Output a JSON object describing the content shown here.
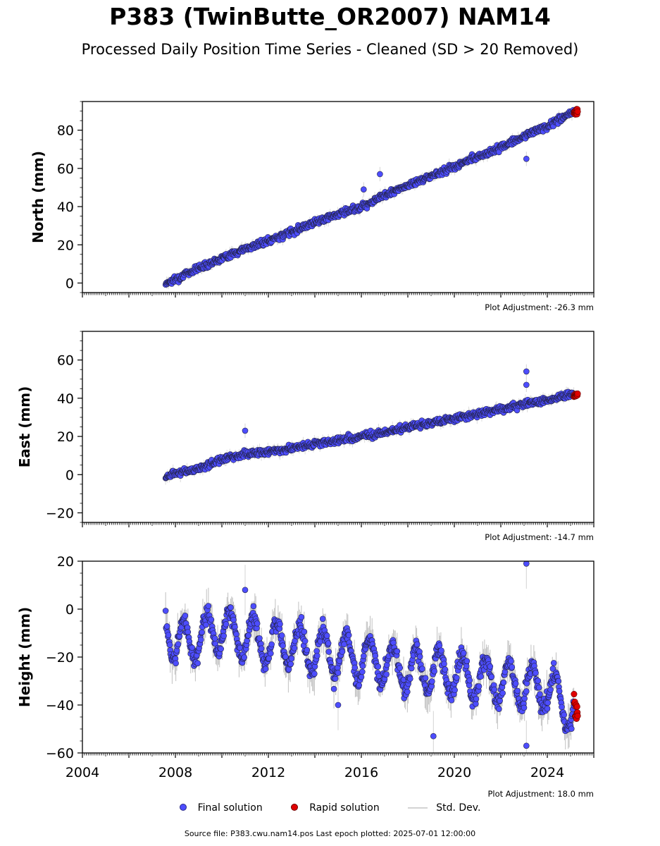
{
  "title": "P383 (TwinButte_OR2007) NAM14",
  "subtitle": "Processed Daily Position Time Series - Cleaned (SD > 20 Removed)",
  "legend": {
    "final": "Final solution",
    "rapid": "Rapid solution",
    "std": "Std. Dev."
  },
  "source": "Source file: P383.cwu.nam14.pos  Last epoch plotted: 2025-07-01 12:00:00",
  "colors": {
    "final": "#4d4dff",
    "rapid": "#e00000",
    "std": "#d3d3d3"
  },
  "chart_data": [
    {
      "type": "scatter",
      "ylabel": "North (mm)",
      "xlim": [
        2004,
        2026
      ],
      "ylim": [
        -5,
        95
      ],
      "yticks": [
        0,
        20,
        40,
        60,
        80
      ],
      "adjustment": "Plot Adjustment: -26.3 mm",
      "series": [
        {
          "name": "Final solution",
          "x": [
            2007.6,
            2008.0,
            2009.0,
            2010.0,
            2011.0,
            2012.0,
            2013.0,
            2014.0,
            2015.0,
            2016.0,
            2017.0,
            2018.0,
            2019.0,
            2020.0,
            2021.0,
            2022.0,
            2023.0,
            2024.0,
            2025.0
          ],
          "y": [
            0,
            2,
            8,
            13,
            18,
            22,
            27,
            32,
            36,
            40,
            46,
            51,
            56,
            61,
            66,
            71,
            77,
            82,
            89
          ]
        },
        {
          "name": "Rapid solution",
          "x": [
            2025.2,
            2025.5
          ],
          "y": [
            89,
            90
          ]
        }
      ],
      "outliers": {
        "x": [
          2016.1,
          2016.8,
          2023.1
        ],
        "y": [
          49,
          57,
          65
        ]
      }
    },
    {
      "type": "scatter",
      "ylabel": "East (mm)",
      "xlim": [
        2004,
        2026
      ],
      "ylim": [
        -25,
        75
      ],
      "yticks": [
        -20,
        0,
        20,
        40,
        60
      ],
      "adjustment": "Plot Adjustment: -14.7 mm",
      "series": [
        {
          "name": "Final solution",
          "x": [
            2007.6,
            2008.0,
            2009.0,
            2010.0,
            2011.0,
            2012.0,
            2013.0,
            2014.0,
            2015.0,
            2016.0,
            2017.0,
            2018.0,
            2019.0,
            2020.0,
            2021.0,
            2022.0,
            2023.0,
            2024.0,
            2025.0
          ],
          "y": [
            -1,
            1,
            3,
            8,
            11,
            12,
            14,
            16,
            18,
            20,
            22,
            25,
            27,
            29,
            32,
            34,
            37,
            39,
            42
          ]
        },
        {
          "name": "Rapid solution",
          "x": [
            2025.2,
            2025.5
          ],
          "y": [
            41,
            42
          ]
        }
      ],
      "outliers": {
        "x": [
          2011.0,
          2023.1,
          2023.1
        ],
        "y": [
          23,
          54,
          47
        ]
      }
    },
    {
      "type": "scatter",
      "ylabel": "Height (mm)",
      "xlim": [
        2004,
        2026
      ],
      "ylim": [
        -60,
        20
      ],
      "yticks": [
        -60,
        -40,
        -20,
        0,
        20
      ],
      "xticks": [
        2004,
        2008,
        2012,
        2016,
        2020,
        2024
      ],
      "adjustment": "Plot Adjustment: 18.0 mm",
      "series": [
        {
          "name": "Final solution",
          "x": [
            2007.6,
            2008.0,
            2009.0,
            2010.0,
            2011.0,
            2012.0,
            2013.0,
            2014.0,
            2015.0,
            2016.0,
            2017.0,
            2018.0,
            2019.0,
            2020.0,
            2021.0,
            2022.0,
            2023.0,
            2024.0,
            2025.0
          ],
          "y": [
            -5,
            -15,
            -12,
            -8,
            -11,
            -14,
            -15,
            -17,
            -19,
            -20,
            -23,
            -25,
            -26,
            -27,
            -29,
            -30,
            -32,
            -33,
            -42
          ]
        },
        {
          "name": "Rapid solution",
          "x": [
            2025.2,
            2025.5
          ],
          "y": [
            -40,
            -45
          ]
        }
      ],
      "outliers": {
        "x": [
          2019.1,
          2023.1,
          2023.1,
          2015.0,
          2011.0
        ],
        "y": [
          -53,
          19,
          -57,
          -40,
          8
        ]
      }
    }
  ]
}
